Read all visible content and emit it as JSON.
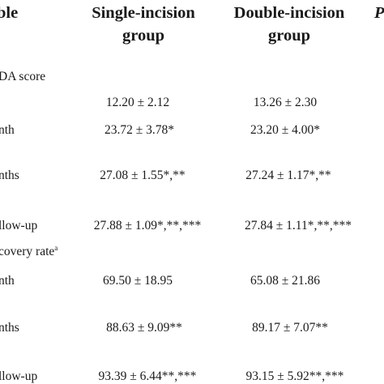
{
  "table": {
    "columns": [
      {
        "line1": "ble",
        "line2": ""
      },
      {
        "line1": "Single-incision",
        "line2": "group"
      },
      {
        "line1": "Double-incision",
        "line2": "group"
      },
      {
        "line1": "P",
        "line2": ""
      }
    ],
    "sections": [
      {
        "label": "DA score",
        "label_sup": "",
        "rows": [
          {
            "label": "",
            "single": "12.20 ± 2.12",
            "double": "13.26 ± 2.30"
          },
          {
            "label": "nth",
            "single": "23.72 ± 3.78*",
            "double": "23.20 ± 4.00*"
          },
          {
            "label": "nths",
            "single": "27.08 ± 1.55*,**",
            "double": "27.24 ± 1.17*,**"
          },
          {
            "label": "llow-up",
            "single": "27.88 ± 1.09*,**,***",
            "double": "27.84 ± 1.11*,**,***"
          }
        ]
      },
      {
        "label": "covery rate",
        "label_sup": "a",
        "rows": [
          {
            "label": "nth",
            "single": "69.50 ± 18.95",
            "double": "65.08 ± 21.86"
          },
          {
            "label": "nths",
            "single": "88.63 ± 9.09**",
            "double": "89.17 ± 7.07**"
          },
          {
            "label": "llow-up",
            "single": "93.39 ± 6.44**,***",
            "double": "93.15 ± 5.92**,***"
          }
        ]
      }
    ]
  }
}
